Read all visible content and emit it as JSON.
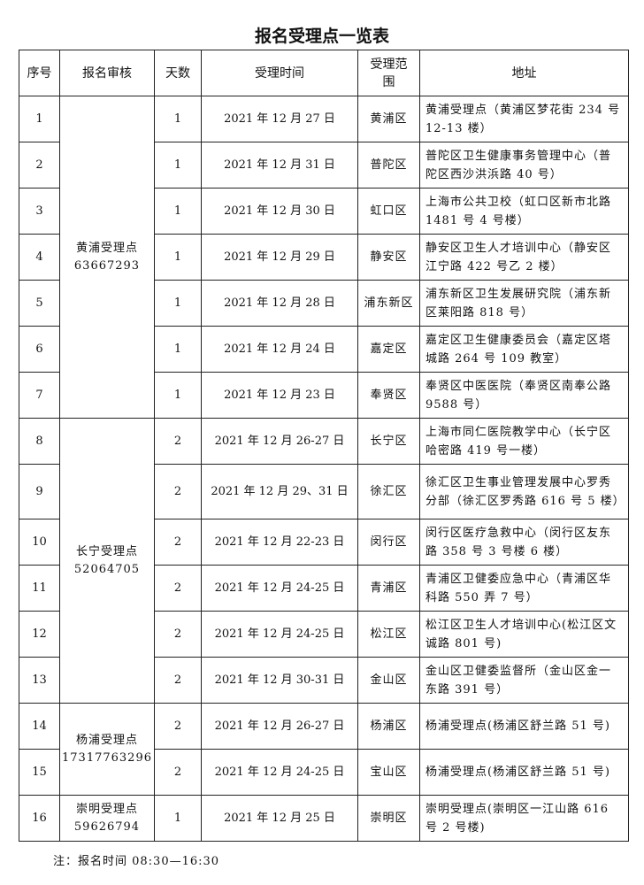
{
  "title": "报名受理点一览表",
  "headers": [
    "序号",
    "报名审核",
    "天数",
    "受理时间",
    "受理范围",
    "地址"
  ],
  "groups": [
    {
      "name": "黄浦受理点",
      "phone": "63667293",
      "rows": [
        1,
        7
      ]
    },
    {
      "name": "长宁受理点",
      "phone": "52064705",
      "rows": [
        8,
        13
      ]
    },
    {
      "name": "杨浦受理点",
      "phone": "17317763296",
      "rows": [
        14,
        15
      ]
    },
    {
      "name": "崇明受理点",
      "phone": "59626794",
      "rows": [
        16,
        16
      ]
    }
  ],
  "rows": [
    {
      "no": "1",
      "days": "1",
      "time": "2021 年 12 月 27 日",
      "scope": "黄浦区",
      "address": "黄浦受理点（黄浦区梦花街 234 号 12-13 楼）"
    },
    {
      "no": "2",
      "days": "1",
      "time": "2021 年 12 月 31 日",
      "scope": "普陀区",
      "address": "普陀区卫生健康事务管理中心（普陀区西沙洪浜路 40 号）"
    },
    {
      "no": "3",
      "days": "1",
      "time": "2021 年 12 月 30 日",
      "scope": "虹口区",
      "address": "上海市公共卫校（虹口区新市北路 1481 号 4 号楼）"
    },
    {
      "no": "4",
      "days": "1",
      "time": "2021 年 12 月 29 日",
      "scope": "静安区",
      "address": "静安区卫生人才培训中心（静安区江宁路 422 号乙 2 楼）"
    },
    {
      "no": "5",
      "days": "1",
      "time": "2021 年 12 月 28 日",
      "scope": "浦东新区",
      "address": "浦东新区卫生发展研究院（浦东新区莱阳路 818 号）"
    },
    {
      "no": "6",
      "days": "1",
      "time": "2021 年 12 月 24 日",
      "scope": "嘉定区",
      "address": "嘉定区卫生健康委员会（嘉定区塔城路 264 号 109 教室）"
    },
    {
      "no": "7",
      "days": "1",
      "time": "2021 年 12 月 23 日",
      "scope": "奉贤区",
      "address": "奉贤区中医医院（奉贤区南奉公路 9588 号）"
    },
    {
      "no": "8",
      "days": "2",
      "time": "2021 年 12 月 26-27 日",
      "scope": "长宁区",
      "address": "上海市同仁医院教学中心（长宁区哈密路 419 号一楼）"
    },
    {
      "no": "9",
      "days": "2",
      "time": "2021 年 12 月 29、31 日",
      "scope": "徐汇区",
      "address": "徐汇区卫生事业管理发展中心罗秀分部（徐汇区罗秀路 616 号 5 楼）"
    },
    {
      "no": "10",
      "days": "2",
      "time": "2021 年 12 月 22-23 日",
      "scope": "闵行区",
      "address": "闵行区医疗急救中心（闵行区友东路 358 号 3 号楼 6 楼）"
    },
    {
      "no": "11",
      "days": "2",
      "time": "2021 年 12 月 24-25 日",
      "scope": "青浦区",
      "address": "青浦区卫健委应急中心（青浦区华科路 550 弄 7 号）"
    },
    {
      "no": "12",
      "days": "2",
      "time": "2021 年 12 月 24-25 日",
      "scope": "松江区",
      "address": "松江区卫生人才培训中心(松江区文诚路 801 号)"
    },
    {
      "no": "13",
      "days": "2",
      "time": "2021 年 12 月 30-31 日",
      "scope": "金山区",
      "address": "金山区卫健委监督所（金山区金一东路 391 号）"
    },
    {
      "no": "14",
      "days": "2",
      "time": "2021 年 12 月 26-27 日",
      "scope": "杨浦区",
      "address": "杨浦受理点(杨浦区舒兰路 51 号)"
    },
    {
      "no": "15",
      "days": "2",
      "time": "2021 年 12 月 24-25 日",
      "scope": "宝山区",
      "address": "杨浦受理点(杨浦区舒兰路 51 号)"
    },
    {
      "no": "16",
      "days": "1",
      "time": "2021 年 12 月 25 日",
      "scope": "崇明区",
      "address": "崇明受理点(崇明区一江山路 616 号 2 号楼)"
    }
  ],
  "note": "注：报名时间 08:30—16:30"
}
